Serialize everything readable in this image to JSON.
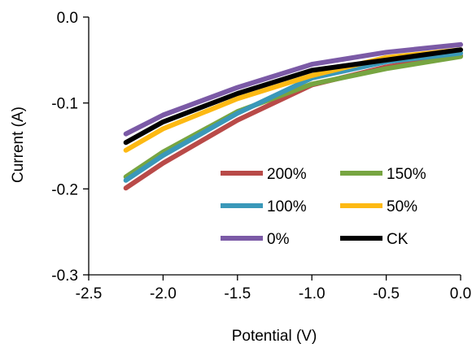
{
  "chart_data": {
    "type": "line",
    "title": "",
    "xlabel": "Potential (V)",
    "ylabel": "Current (A)",
    "xlim": [
      -2.5,
      0.0
    ],
    "ylim": [
      -0.3,
      0.0
    ],
    "x_ticks": [
      -2.5,
      -2.0,
      -1.5,
      -1.0,
      -0.5,
      0.0
    ],
    "x_tick_labels": [
      "-2.5",
      "-2.0",
      "-1.5",
      "-1.0",
      "-0.5",
      "0.0"
    ],
    "y_ticks": [
      0.0,
      -0.1,
      -0.2,
      -0.3
    ],
    "y_tick_labels": [
      "0.0",
      "-0.1",
      "-0.2",
      "-0.3"
    ],
    "grid": false,
    "legend": "inside, lower right, two columns",
    "series": [
      {
        "name": "200%",
        "color": "#B94A48",
        "x": [
          -2.25,
          -2.0,
          -1.5,
          -1.0,
          -0.5,
          0.0
        ],
        "y": [
          -0.199,
          -0.17,
          -0.12,
          -0.079,
          -0.058,
          -0.045
        ]
      },
      {
        "name": "150%",
        "color": "#77A541",
        "x": [
          -2.25,
          -2.0,
          -1.5,
          -1.0,
          -0.5,
          0.0
        ],
        "y": [
          -0.186,
          -0.157,
          -0.11,
          -0.078,
          -0.06,
          -0.046
        ]
      },
      {
        "name": "100%",
        "color": "#3A98B9",
        "x": [
          -2.25,
          -2.0,
          -1.5,
          -1.0,
          -0.5,
          0.0
        ],
        "y": [
          -0.19,
          -0.161,
          -0.112,
          -0.071,
          -0.052,
          -0.042
        ]
      },
      {
        "name": "50%",
        "color": "#FDB913",
        "x": [
          -2.25,
          -2.0,
          -1.5,
          -1.0,
          -0.5,
          0.0
        ],
        "y": [
          -0.155,
          -0.13,
          -0.095,
          -0.068,
          -0.047,
          -0.038
        ]
      },
      {
        "name": "0%",
        "color": "#7B5AA6",
        "x": [
          -2.25,
          -2.0,
          -1.5,
          -1.0,
          -0.5,
          0.0
        ],
        "y": [
          -0.136,
          -0.114,
          -0.082,
          -0.055,
          -0.041,
          -0.032
        ]
      },
      {
        "name": "CK",
        "color": "#000000",
        "x": [
          -2.25,
          -2.0,
          -1.5,
          -1.0,
          -0.5,
          0.0
        ],
        "y": [
          -0.146,
          -0.122,
          -0.089,
          -0.062,
          -0.05,
          -0.038
        ]
      }
    ]
  }
}
